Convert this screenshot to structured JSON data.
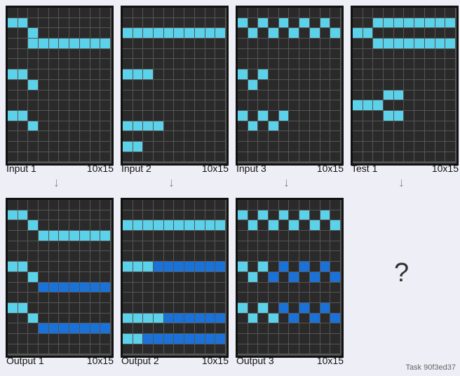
{
  "panels": [
    {
      "id": "input-1",
      "label": "Input 1",
      "size": "10x15",
      "cells": {
        "cyan": [
          [
            1,
            0
          ],
          [
            1,
            1
          ],
          [
            2,
            2
          ],
          [
            3,
            2
          ],
          [
            4,
            2
          ],
          [
            5,
            2
          ],
          [
            6,
            2
          ],
          [
            7,
            2
          ],
          [
            8,
            2
          ],
          [
            9,
            2
          ],
          [
            2,
            1
          ],
          [
            0,
            6
          ],
          [
            1,
            6
          ],
          [
            2,
            7
          ],
          [
            0,
            10
          ],
          [
            1,
            10
          ],
          [
            2,
            11
          ]
        ],
        "blue": []
      }
    },
    {
      "id": "input-2",
      "label": "Input 2",
      "size": "10x15",
      "cells": {
        "cyan": [
          [
            0,
            2
          ],
          [
            1,
            2
          ],
          [
            2,
            2
          ],
          [
            3,
            2
          ],
          [
            4,
            2
          ],
          [
            5,
            2
          ],
          [
            6,
            2
          ],
          [
            7,
            2
          ],
          [
            8,
            2
          ],
          [
            9,
            2
          ],
          [
            0,
            6
          ],
          [
            1,
            6
          ],
          [
            2,
            6
          ],
          [
            0,
            11
          ],
          [
            1,
            11
          ],
          [
            2,
            11
          ],
          [
            3,
            11
          ],
          [
            0,
            13
          ],
          [
            1,
            13
          ]
        ],
        "blue": []
      }
    },
    {
      "id": "input-3",
      "label": "Input 3",
      "size": "10x15",
      "cells": {
        "cyan": [],
        "blue": []
      }
    },
    {
      "id": "test-1",
      "label": "Test 1",
      "size": "10x15",
      "cells": {
        "cyan": [],
        "blue": []
      }
    },
    {
      "id": "output-1",
      "label": "Output 1",
      "size": "10x15",
      "cells": {
        "cyan": [],
        "blue": []
      }
    },
    {
      "id": "output-2",
      "label": "Output 2",
      "size": "10x15",
      "cells": {
        "cyan": [],
        "blue": []
      }
    },
    {
      "id": "output-3",
      "label": "Output 3",
      "size": "10x15",
      "cells": {
        "cyan": [],
        "blue": []
      }
    }
  ],
  "arrow_glyph": "↓",
  "question_mark": "?",
  "task_label": "Task 90f3ed37",
  "colors": {
    "cyan": "#5bd2e9",
    "blue": "#1a72d9",
    "cell": "#2a2a2a"
  }
}
